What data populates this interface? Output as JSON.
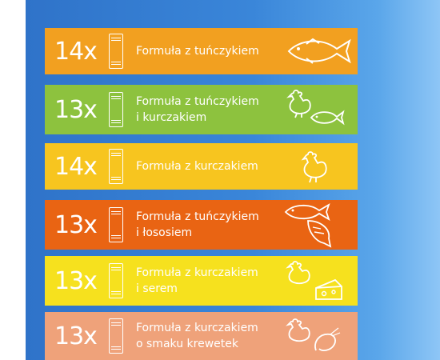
{
  "items": [
    {
      "count": "14x",
      "line1": "Formuła z tuńczykiem",
      "line2": "",
      "color": "#f2a020",
      "icons": [
        "tuna-fish-icon"
      ]
    },
    {
      "count": "13x",
      "line1": "Formuła z tuńczykiem",
      "line2": "i kurczakiem",
      "color": "#8dc23e",
      "icons": [
        "chicken-icon",
        "fish-icon"
      ]
    },
    {
      "count": "14x",
      "line1": "Formuła z kurczakiem",
      "line2": "",
      "color": "#f7c51f",
      "icons": [
        "chicken-icon"
      ]
    },
    {
      "count": "13x",
      "line1": "Formuła z tuńczykiem",
      "line2": "i łososiem",
      "color": "#e96413",
      "icons": [
        "tuna-fish-icon",
        "salmon-icon"
      ]
    },
    {
      "count": "13x",
      "line1": "Formuła z kurczakiem",
      "line2": "i serem",
      "color": "#f6e11e",
      "icons": [
        "chicken-icon",
        "cheese-icon"
      ]
    },
    {
      "count": "13x",
      "line1": "Formuła z kurczakiem",
      "line2": "o smaku krewetek",
      "color": "#efa27a",
      "icons": [
        "chicken-icon",
        "shrimp-icon"
      ]
    }
  ]
}
